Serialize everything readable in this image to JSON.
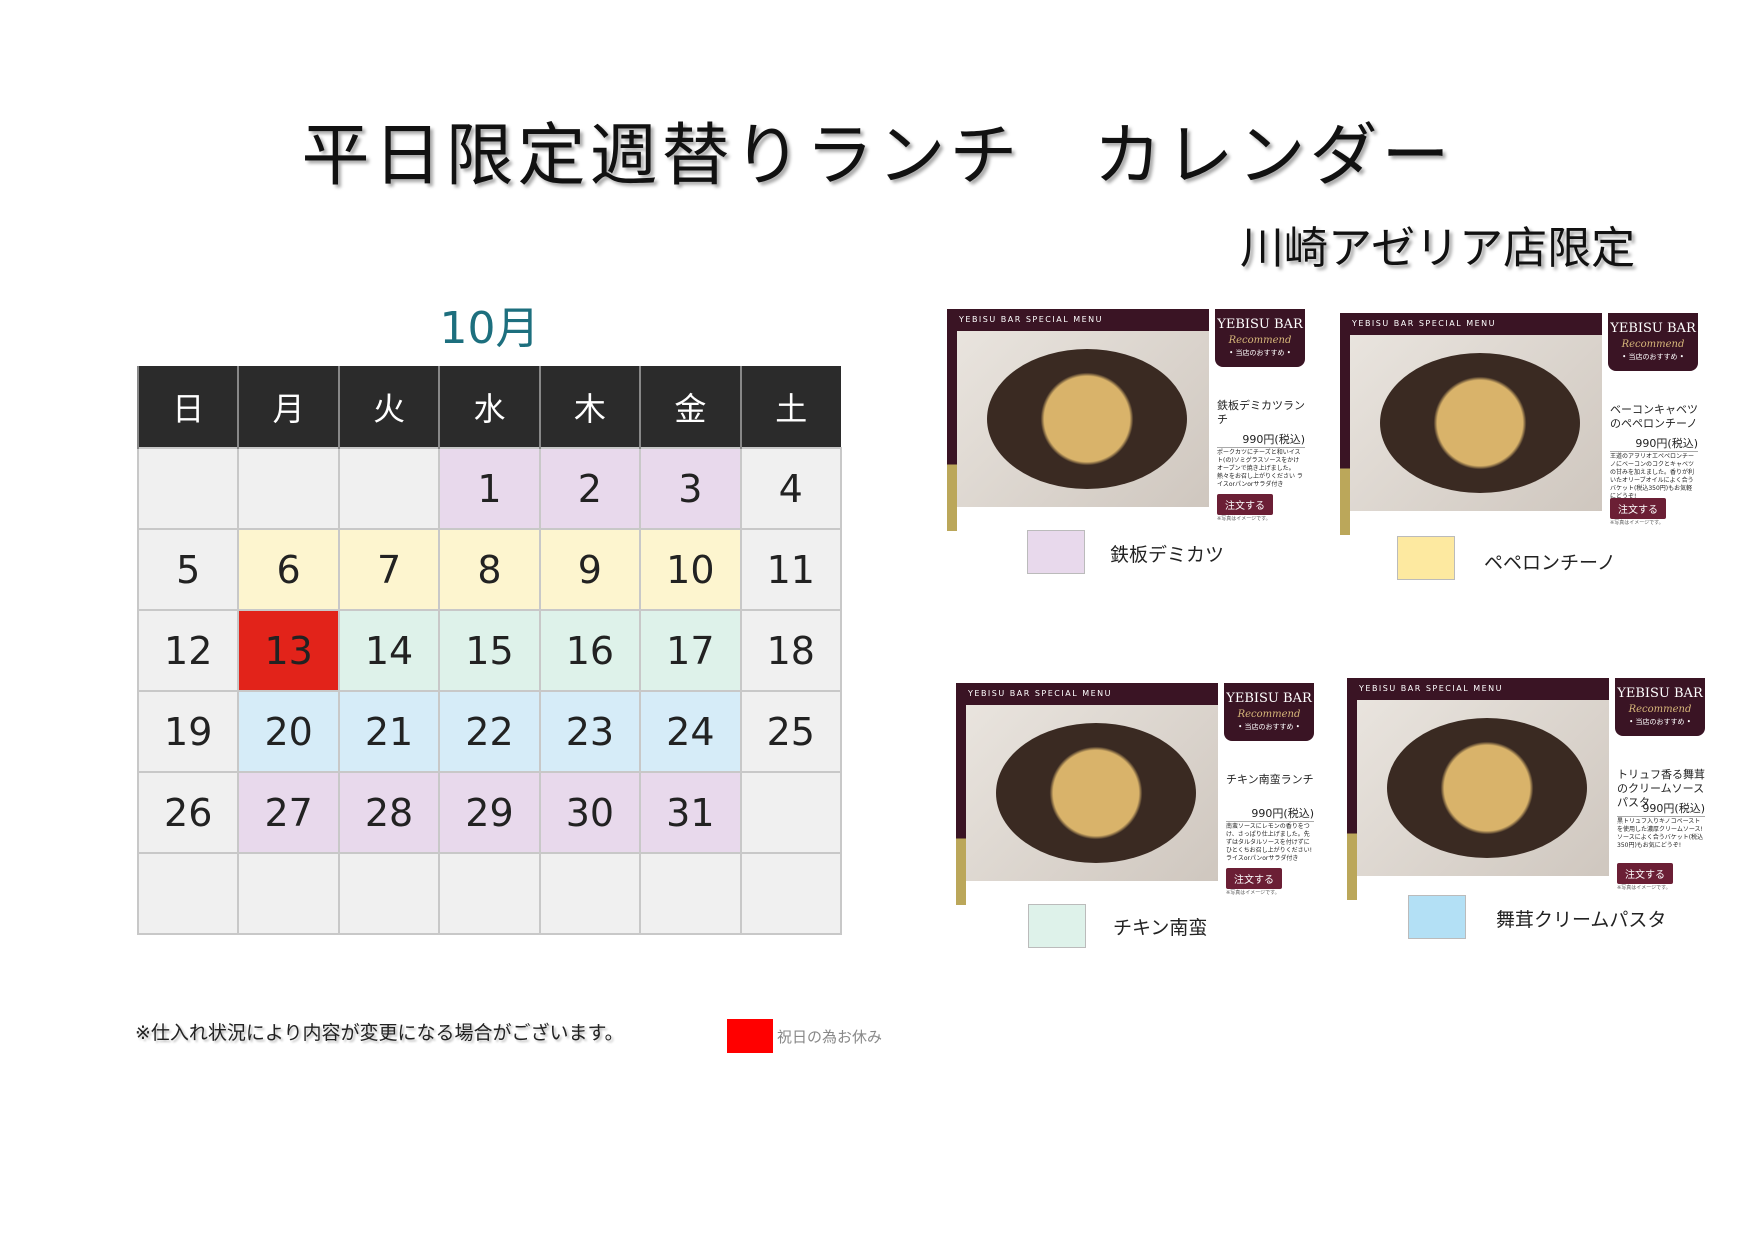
{
  "title": "平日限定週替りランチ　カレンダー",
  "subtitle": "川崎アゼリア店限定",
  "calendar": {
    "month": "10月",
    "weekdays": [
      "日",
      "月",
      "火",
      "水",
      "木",
      "金",
      "土"
    ],
    "weeks": [
      [
        "",
        "",
        "",
        "1",
        "2",
        "3",
        "4"
      ],
      [
        "5",
        "6",
        "7",
        "8",
        "9",
        "10",
        "11"
      ],
      [
        "12",
        "13",
        "14",
        "15",
        "16",
        "17",
        "18"
      ],
      [
        "19",
        "20",
        "21",
        "22",
        "23",
        "24",
        "25"
      ],
      [
        "26",
        "27",
        "28",
        "29",
        "30",
        "31",
        ""
      ],
      [
        "",
        "",
        "",
        "",
        "",
        "",
        ""
      ]
    ],
    "cell_colors": [
      [
        "#f0f0f0",
        "#f0f0f0",
        "#f0f0f0",
        "#e8d9ec",
        "#e8d9ec",
        "#e8d9ec",
        "#f0f0f0"
      ],
      [
        "#f0f0f0",
        "#fdf5cf",
        "#fdf5cf",
        "#fdf5cf",
        "#fdf5cf",
        "#fdf5cf",
        "#f0f0f0"
      ],
      [
        "#f0f0f0",
        "#e2231a",
        "#def2ea",
        "#def2ea",
        "#def2ea",
        "#def2ea",
        "#f0f0f0"
      ],
      [
        "#f0f0f0",
        "#d6ecf8",
        "#d6ecf8",
        "#d6ecf8",
        "#d6ecf8",
        "#d6ecf8",
        "#f0f0f0"
      ],
      [
        "#f0f0f0",
        "#e8d9ec",
        "#e8d9ec",
        "#e8d9ec",
        "#e8d9ec",
        "#e8d9ec",
        "#f0f0f0"
      ],
      [
        "#f0f0f0",
        "#f0f0f0",
        "#f0f0f0",
        "#f0f0f0",
        "#f0f0f0",
        "#f0f0f0",
        "#f0f0f0"
      ]
    ]
  },
  "menus": [
    {
      "header": "YEBISU BAR SPECIAL MENU",
      "badge": "YEBISU BAR",
      "badge_script": "Recommend",
      "badge_sub": "• 当店のおすすめ •",
      "name": "鉄板デミカツランチ",
      "price": "990円(税込)",
      "desc": "ポークカツにチーズと和いイスト(の)ソミグラスソースをかけオーブンで焼き上げました。熱々をお召し上がりください ライスorパンorサラダ付き",
      "order": "注文する",
      "note": "※写真はイメージです。",
      "legend": "鉄板デミカツ",
      "color": "#e8d9ec"
    },
    {
      "header": "YEBISU BAR SPECIAL MENU",
      "badge": "YEBISU BAR",
      "badge_script": "Recommend",
      "badge_sub": "• 当店のおすすめ •",
      "name": "ベーコンキャベツのペペロンチーノ",
      "price": "990円(税込)",
      "desc": "王道のアヲリオエペペロンチーノにベーコンのコクとキャベツの甘みを加えました。香りが利いたオリーブオイルによく合うバケット(税込350円)もお気軽にどうぞ!",
      "order": "注文する",
      "note": "※写真はイメージです。",
      "legend": "ペペロンチーノ",
      "color": "#fde9a0"
    },
    {
      "header": "YEBISU BAR SPECIAL MENU",
      "badge": "YEBISU BAR",
      "badge_script": "Recommend",
      "badge_sub": "• 当店のおすすめ •",
      "name": "チキン南蛮ランチ",
      "price": "990円(税込)",
      "desc": "南蛮ソースにレモンの香りをつけ、さっぱり仕上げました。先ずはタルタルソースを付けずにひとくちお召し上がりください! ライスorパンorサラダ付き",
      "order": "注文する",
      "note": "※写真はイメージです。",
      "legend": "チキン南蛮",
      "color": "#def2ea"
    },
    {
      "header": "YEBISU BAR SPECIAL MENU",
      "badge": "YEBISU BAR",
      "badge_script": "Recommend",
      "badge_sub": "• 当店のおすすめ •",
      "name": "トリュフ香る舞茸のクリームソースパスタ",
      "price": "990円(税込)",
      "desc": "黒トリュフ入りキノコペーストを使用した濃厚クリームソース! ソースによく合うバケット(税込350円)もお気にどうぞ!",
      "order": "注文する",
      "note": "※写真はイメージです。",
      "legend": "舞茸クリームパスタ",
      "color": "#b3e0f5"
    }
  ],
  "footer_note": "※仕入れ状況により内容が変更になる場合がございます。",
  "holiday_legend": {
    "label": "祝日の為お休み",
    "color": "#ff0000"
  }
}
